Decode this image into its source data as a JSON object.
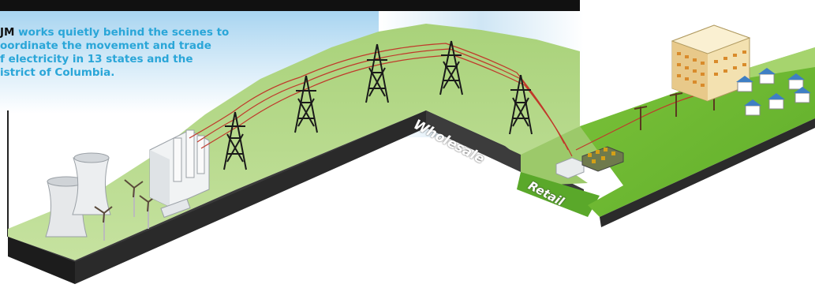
{
  "caption": {
    "brand": "JM",
    "text": " works quietly behind the scenes to\noordinate the movement and trade\nf electricity in 13 states and the\nistrict of Columbia."
  },
  "segments": {
    "wholesale": "Wholesale",
    "retail": "Retail"
  },
  "colors": {
    "ground_green": "#8cc63f",
    "ground_light": "#b5d98a",
    "retail_green": "#5fb02d",
    "wall": "#2b2b2b",
    "sky_blue": "#b9dcf3",
    "caption_blue": "#2aa6d8",
    "power_line": "#c0392b"
  }
}
